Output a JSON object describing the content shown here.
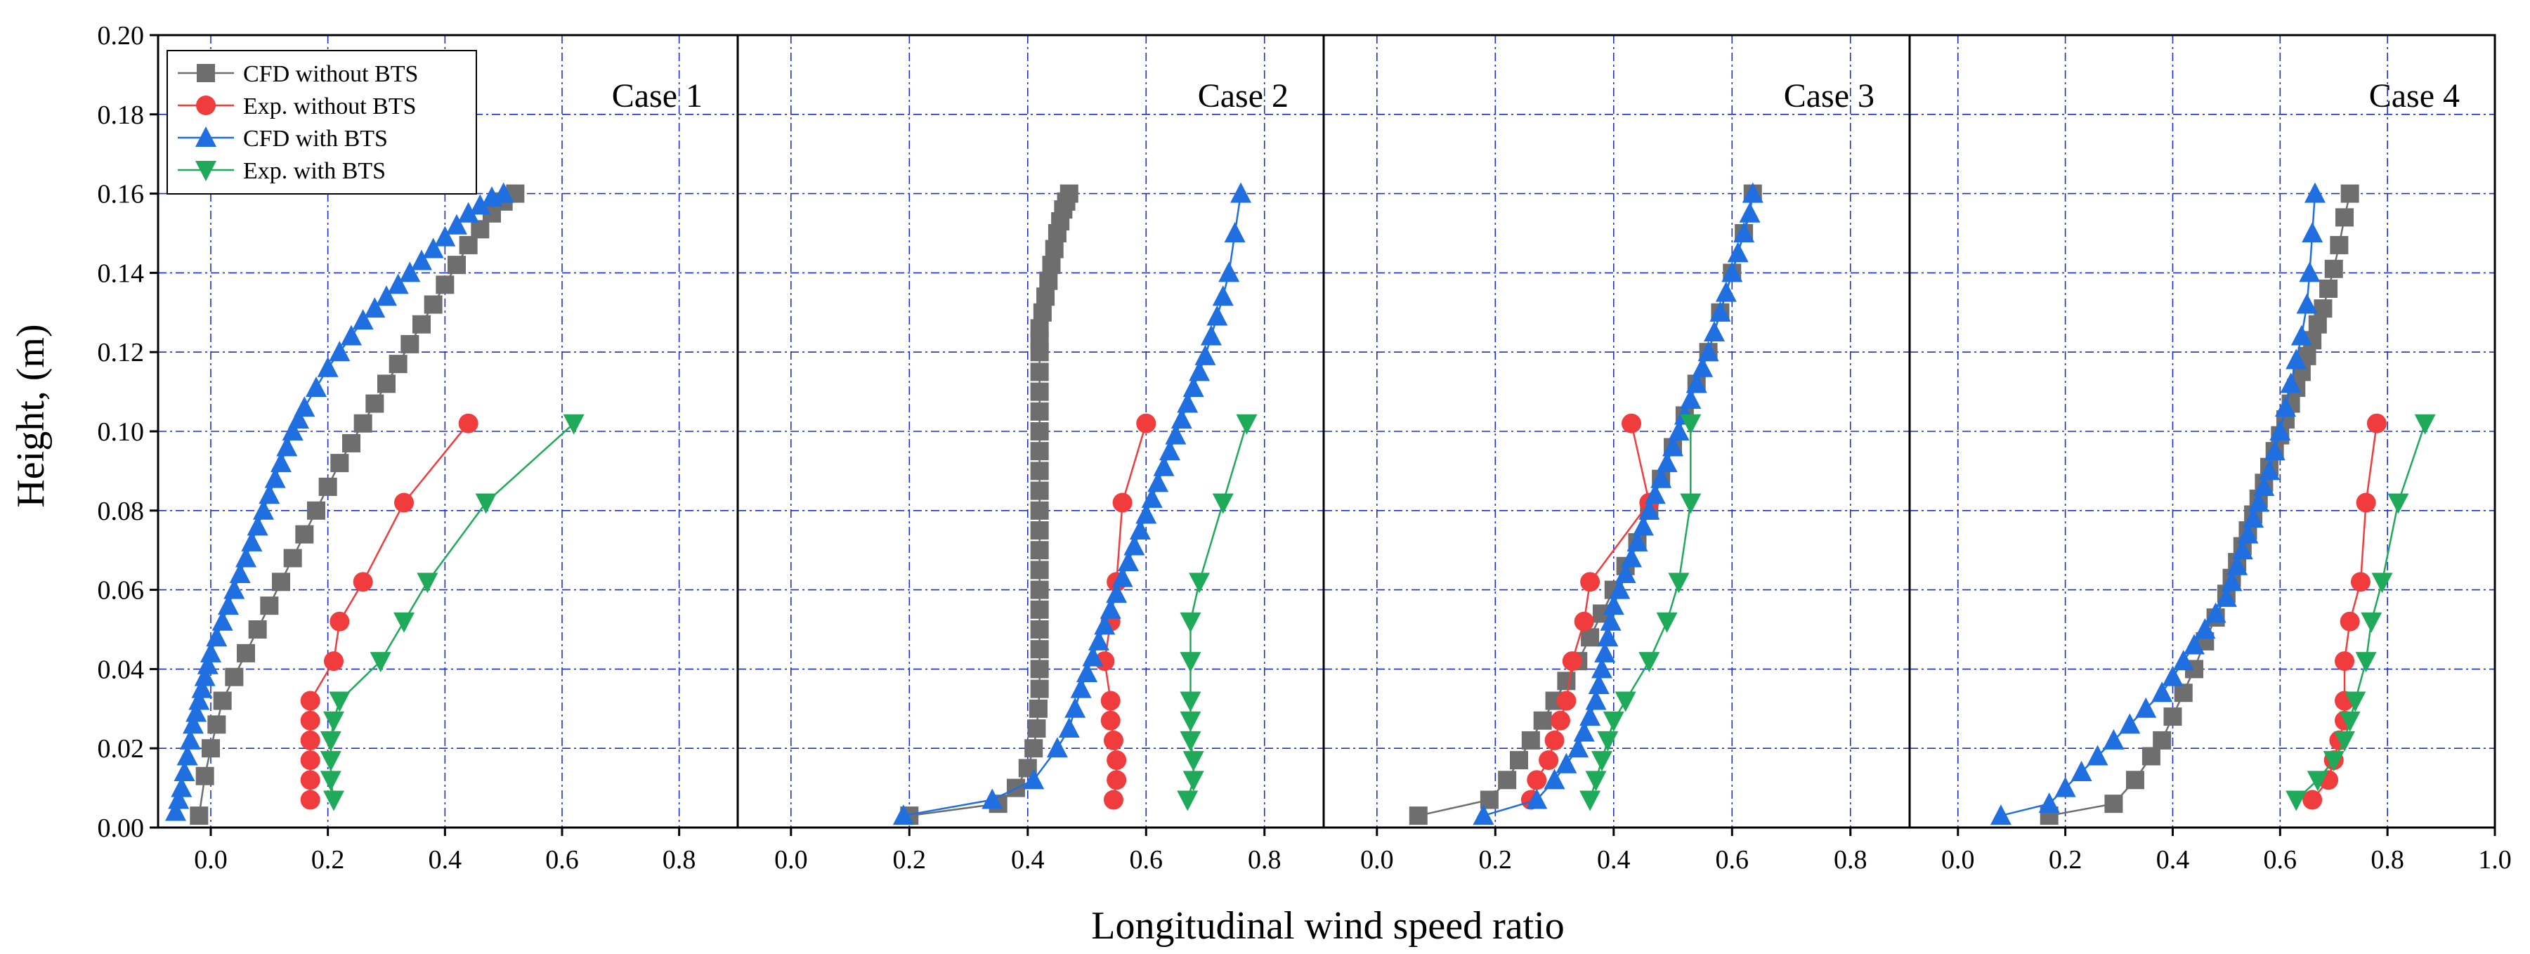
{
  "chart_data": {
    "type": "line",
    "ylabel": "Height, (m)",
    "xlabel": "Longitudinal wind speed ratio",
    "ylim": [
      0.0,
      0.2
    ],
    "y_ticks": [
      0.0,
      0.02,
      0.04,
      0.06,
      0.08,
      0.1,
      0.12,
      0.14,
      0.16,
      0.18,
      0.2
    ],
    "y_tick_labels": [
      "0.00",
      "0.02",
      "0.04",
      "0.06",
      "0.08",
      "0.10",
      "0.12",
      "0.14",
      "0.16",
      "0.18",
      "0.20"
    ],
    "grid": true,
    "legend": {
      "placement": "top-left",
      "entries": [
        {
          "label": "CFD without BTS",
          "color": "#6e6e6e",
          "marker": "square"
        },
        {
          "label": "Exp. without BTS",
          "color": "#f03c3c",
          "marker": "circle"
        },
        {
          "label": "CFD  with BTS",
          "color": "#1f6fe0",
          "marker": "triangle-up"
        },
        {
          "label": "Exp. with BTS",
          "color": "#1faa5a",
          "marker": "triangle-down"
        }
      ]
    },
    "panels": [
      {
        "title": "Case 1",
        "xlim": [
          -0.09,
          0.9
        ],
        "x_ticks": [
          0.0,
          0.2,
          0.4,
          0.6,
          0.8
        ],
        "x_tick_labels": [
          "0.0",
          "0.2",
          "0.4",
          "0.6",
          "0.8"
        ],
        "series": [
          {
            "name": "CFD without BTS",
            "x": [
              -0.02,
              -0.01,
              0.0,
              0.01,
              0.02,
              0.04,
              0.06,
              0.08,
              0.1,
              0.12,
              0.14,
              0.16,
              0.18,
              0.2,
              0.22,
              0.24,
              0.26,
              0.28,
              0.3,
              0.32,
              0.34,
              0.36,
              0.38,
              0.4,
              0.42,
              0.44,
              0.46,
              0.48,
              0.5,
              0.52
            ],
            "y": [
              0.003,
              0.013,
              0.02,
              0.026,
              0.032,
              0.038,
              0.044,
              0.05,
              0.056,
              0.062,
              0.068,
              0.074,
              0.08,
              0.086,
              0.092,
              0.097,
              0.102,
              0.107,
              0.112,
              0.117,
              0.122,
              0.127,
              0.132,
              0.137,
              0.142,
              0.147,
              0.151,
              0.155,
              0.158,
              0.16
            ]
          },
          {
            "name": "Exp. without BTS",
            "x": [
              0.17,
              0.17,
              0.17,
              0.17,
              0.17,
              0.17,
              0.21,
              0.22,
              0.26,
              0.33,
              0.44
            ],
            "y": [
              0.007,
              0.012,
              0.017,
              0.022,
              0.027,
              0.032,
              0.042,
              0.052,
              0.062,
              0.082,
              0.102
            ]
          },
          {
            "name": "CFD  with BTS",
            "x": [
              -0.06,
              -0.055,
              -0.05,
              -0.045,
              -0.04,
              -0.035,
              -0.03,
              -0.025,
              -0.02,
              -0.015,
              -0.01,
              -0.005,
              0.0,
              0.01,
              0.02,
              0.03,
              0.04,
              0.05,
              0.06,
              0.07,
              0.08,
              0.09,
              0.1,
              0.11,
              0.12,
              0.13,
              0.14,
              0.15,
              0.16,
              0.18,
              0.2,
              0.22,
              0.24,
              0.26,
              0.28,
              0.3,
              0.32,
              0.34,
              0.36,
              0.38,
              0.4,
              0.42,
              0.44,
              0.46,
              0.48,
              0.5
            ],
            "y": [
              0.004,
              0.007,
              0.01,
              0.014,
              0.018,
              0.022,
              0.026,
              0.029,
              0.032,
              0.035,
              0.038,
              0.041,
              0.044,
              0.048,
              0.052,
              0.056,
              0.06,
              0.064,
              0.068,
              0.072,
              0.076,
              0.08,
              0.084,
              0.088,
              0.092,
              0.096,
              0.1,
              0.103,
              0.106,
              0.111,
              0.116,
              0.12,
              0.124,
              0.128,
              0.131,
              0.134,
              0.137,
              0.14,
              0.143,
              0.146,
              0.149,
              0.152,
              0.155,
              0.157,
              0.159,
              0.16
            ]
          },
          {
            "name": "Exp. with BTS",
            "x": [
              0.21,
              0.205,
              0.205,
              0.205,
              0.21,
              0.22,
              0.29,
              0.33,
              0.37,
              0.47,
              0.62
            ],
            "y": [
              0.007,
              0.012,
              0.017,
              0.022,
              0.027,
              0.032,
              0.042,
              0.052,
              0.062,
              0.082,
              0.102
            ]
          }
        ]
      },
      {
        "title": "Case 2",
        "xlim": [
          -0.09,
          0.9
        ],
        "x_ticks": [
          0.0,
          0.2,
          0.4,
          0.6,
          0.8
        ],
        "x_tick_labels": [
          "0.0",
          "0.2",
          "0.4",
          "0.6",
          "0.8"
        ],
        "series": [
          {
            "name": "CFD without BTS",
            "x": [
              0.2,
              0.35,
              0.38,
              0.4,
              0.41,
              0.415,
              0.418,
              0.42,
              0.42,
              0.42,
              0.42,
              0.42,
              0.42,
              0.42,
              0.42,
              0.42,
              0.42,
              0.42,
              0.42,
              0.42,
              0.42,
              0.42,
              0.42,
              0.42,
              0.42,
              0.42,
              0.42,
              0.425,
              0.43,
              0.435,
              0.44,
              0.445,
              0.45,
              0.455,
              0.46,
              0.465,
              0.47
            ],
            "y": [
              0.003,
              0.006,
              0.01,
              0.015,
              0.02,
              0.025,
              0.03,
              0.035,
              0.04,
              0.045,
              0.05,
              0.055,
              0.06,
              0.065,
              0.07,
              0.075,
              0.08,
              0.085,
              0.09,
              0.095,
              0.1,
              0.105,
              0.11,
              0.115,
              0.12,
              0.123,
              0.126,
              0.13,
              0.134,
              0.138,
              0.142,
              0.146,
              0.15,
              0.153,
              0.156,
              0.158,
              0.16
            ]
          },
          {
            "name": "Exp. without BTS",
            "x": [
              0.545,
              0.55,
              0.55,
              0.545,
              0.54,
              0.54,
              0.53,
              0.54,
              0.55,
              0.56,
              0.6
            ],
            "y": [
              0.007,
              0.012,
              0.017,
              0.022,
              0.027,
              0.032,
              0.042,
              0.052,
              0.062,
              0.082,
              0.102
            ]
          },
          {
            "name": "CFD  with BTS",
            "x": [
              0.19,
              0.34,
              0.41,
              0.45,
              0.47,
              0.48,
              0.49,
              0.5,
              0.51,
              0.52,
              0.53,
              0.54,
              0.55,
              0.56,
              0.57,
              0.58,
              0.59,
              0.6,
              0.61,
              0.62,
              0.63,
              0.64,
              0.65,
              0.66,
              0.67,
              0.68,
              0.69,
              0.7,
              0.71,
              0.72,
              0.73,
              0.74,
              0.75,
              0.76
            ],
            "y": [
              0.003,
              0.007,
              0.012,
              0.02,
              0.025,
              0.03,
              0.035,
              0.039,
              0.043,
              0.047,
              0.051,
              0.055,
              0.059,
              0.063,
              0.067,
              0.071,
              0.075,
              0.079,
              0.083,
              0.087,
              0.091,
              0.095,
              0.099,
              0.103,
              0.107,
              0.111,
              0.115,
              0.119,
              0.124,
              0.129,
              0.134,
              0.14,
              0.15,
              0.16
            ]
          },
          {
            "name": "Exp. with BTS",
            "x": [
              0.67,
              0.68,
              0.68,
              0.675,
              0.675,
              0.675,
              0.675,
              0.675,
              0.69,
              0.73,
              0.77
            ],
            "y": [
              0.007,
              0.012,
              0.017,
              0.022,
              0.027,
              0.032,
              0.042,
              0.052,
              0.062,
              0.082,
              0.102
            ]
          }
        ]
      },
      {
        "title": "Case 3",
        "xlim": [
          -0.09,
          0.9
        ],
        "x_ticks": [
          0.0,
          0.2,
          0.4,
          0.6,
          0.8
        ],
        "x_tick_labels": [
          "0.0",
          "0.2",
          "0.4",
          "0.6",
          "0.8"
        ],
        "series": [
          {
            "name": "CFD without BTS",
            "x": [
              0.07,
              0.19,
              0.22,
              0.24,
              0.26,
              0.28,
              0.3,
              0.32,
              0.34,
              0.36,
              0.38,
              0.4,
              0.42,
              0.44,
              0.46,
              0.48,
              0.5,
              0.52,
              0.54,
              0.56,
              0.58,
              0.6,
              0.62,
              0.635
            ],
            "y": [
              0.003,
              0.007,
              0.012,
              0.017,
              0.022,
              0.027,
              0.032,
              0.037,
              0.042,
              0.048,
              0.054,
              0.06,
              0.066,
              0.072,
              0.08,
              0.088,
              0.096,
              0.104,
              0.112,
              0.12,
              0.13,
              0.14,
              0.15,
              0.16
            ]
          },
          {
            "name": "Exp. without BTS",
            "x": [
              0.26,
              0.27,
              0.29,
              0.3,
              0.31,
              0.32,
              0.33,
              0.35,
              0.36,
              0.46,
              0.43
            ],
            "y": [
              0.007,
              0.012,
              0.017,
              0.022,
              0.027,
              0.032,
              0.042,
              0.052,
              0.062,
              0.082,
              0.102
            ]
          },
          {
            "name": "CFD  with BTS",
            "x": [
              0.18,
              0.27,
              0.3,
              0.32,
              0.34,
              0.35,
              0.36,
              0.37,
              0.375,
              0.38,
              0.385,
              0.39,
              0.395,
              0.4,
              0.41,
              0.42,
              0.43,
              0.44,
              0.45,
              0.46,
              0.47,
              0.48,
              0.49,
              0.5,
              0.51,
              0.52,
              0.53,
              0.54,
              0.55,
              0.56,
              0.57,
              0.58,
              0.59,
              0.6,
              0.61,
              0.62,
              0.63,
              0.635
            ],
            "y": [
              0.003,
              0.007,
              0.012,
              0.016,
              0.02,
              0.024,
              0.028,
              0.032,
              0.036,
              0.04,
              0.044,
              0.048,
              0.052,
              0.056,
              0.06,
              0.064,
              0.068,
              0.072,
              0.076,
              0.08,
              0.084,
              0.088,
              0.092,
              0.096,
              0.1,
              0.104,
              0.108,
              0.112,
              0.116,
              0.12,
              0.125,
              0.13,
              0.135,
              0.14,
              0.145,
              0.15,
              0.155,
              0.16
            ]
          },
          {
            "name": "Exp. with BTS",
            "x": [
              0.36,
              0.37,
              0.38,
              0.39,
              0.4,
              0.42,
              0.46,
              0.49,
              0.51,
              0.53,
              0.53
            ],
            "y": [
              0.007,
              0.012,
              0.017,
              0.022,
              0.027,
              0.032,
              0.042,
              0.052,
              0.062,
              0.082,
              0.102
            ]
          }
        ]
      },
      {
        "title": "Case 4",
        "xlim": [
          -0.09,
          1.0
        ],
        "x_ticks": [
          0.0,
          0.2,
          0.4,
          0.6,
          0.8,
          1.0
        ],
        "x_tick_labels": [
          "0.0",
          "0.2",
          "0.4",
          "0.6",
          "0.8",
          "1.0"
        ],
        "series": [
          {
            "name": "CFD without BTS",
            "x": [
              0.17,
              0.29,
              0.33,
              0.36,
              0.38,
              0.4,
              0.42,
              0.44,
              0.46,
              0.48,
              0.5,
              0.51,
              0.52,
              0.53,
              0.54,
              0.55,
              0.56,
              0.57,
              0.58,
              0.59,
              0.6,
              0.61,
              0.62,
              0.63,
              0.64,
              0.65,
              0.66,
              0.67,
              0.68,
              0.69,
              0.7,
              0.71,
              0.72,
              0.73
            ],
            "y": [
              0.003,
              0.006,
              0.012,
              0.018,
              0.022,
              0.028,
              0.034,
              0.04,
              0.047,
              0.053,
              0.059,
              0.063,
              0.067,
              0.071,
              0.075,
              0.079,
              0.083,
              0.087,
              0.091,
              0.095,
              0.099,
              0.103,
              0.107,
              0.111,
              0.115,
              0.119,
              0.123,
              0.127,
              0.131,
              0.136,
              0.141,
              0.147,
              0.154,
              0.16
            ]
          },
          {
            "name": "Exp. without BTS",
            "x": [
              0.66,
              0.69,
              0.7,
              0.71,
              0.72,
              0.72,
              0.72,
              0.73,
              0.75,
              0.76,
              0.78
            ],
            "y": [
              0.007,
              0.012,
              0.017,
              0.022,
              0.027,
              0.032,
              0.042,
              0.052,
              0.062,
              0.082,
              0.102
            ]
          },
          {
            "name": "CFD  with BTS",
            "x": [
              0.08,
              0.17,
              0.2,
              0.23,
              0.26,
              0.29,
              0.32,
              0.35,
              0.38,
              0.4,
              0.42,
              0.44,
              0.46,
              0.48,
              0.5,
              0.51,
              0.52,
              0.53,
              0.54,
              0.55,
              0.56,
              0.57,
              0.58,
              0.59,
              0.6,
              0.61,
              0.62,
              0.63,
              0.64,
              0.65,
              0.655,
              0.66,
              0.665
            ],
            "y": [
              0.003,
              0.006,
              0.01,
              0.014,
              0.018,
              0.022,
              0.026,
              0.03,
              0.034,
              0.038,
              0.042,
              0.046,
              0.05,
              0.054,
              0.058,
              0.062,
              0.066,
              0.07,
              0.074,
              0.078,
              0.082,
              0.086,
              0.09,
              0.095,
              0.1,
              0.106,
              0.112,
              0.118,
              0.124,
              0.132,
              0.14,
              0.15,
              0.16
            ]
          },
          {
            "name": "Exp. with BTS",
            "x": [
              0.63,
              0.67,
              0.7,
              0.72,
              0.73,
              0.74,
              0.76,
              0.77,
              0.79,
              0.82,
              0.87
            ],
            "y": [
              0.007,
              0.012,
              0.017,
              0.022,
              0.027,
              0.032,
              0.042,
              0.052,
              0.062,
              0.082,
              0.102
            ]
          }
        ]
      }
    ]
  }
}
